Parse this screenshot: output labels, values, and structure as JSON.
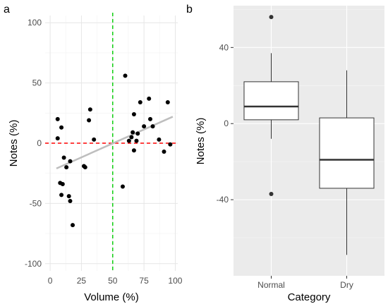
{
  "chart_data": [
    {
      "panel_label": "a",
      "type": "scatter",
      "xlabel": "Volume (%)",
      "ylabel": "Notes (%)",
      "xlim": [
        -4,
        102
      ],
      "ylim": [
        -106,
        106
      ],
      "xticks": [
        0,
        25,
        50,
        75,
        100
      ],
      "yticks": [
        -100,
        -50,
        0,
        50,
        100
      ],
      "grid": true,
      "background": "white",
      "points": [
        [
          6,
          4
        ],
        [
          6,
          20
        ],
        [
          8,
          -33
        ],
        [
          9,
          13
        ],
        [
          9,
          -43
        ],
        [
          10,
          -34
        ],
        [
          11,
          -12
        ],
        [
          13,
          -20
        ],
        [
          15,
          -44
        ],
        [
          16,
          -15
        ],
        [
          16,
          -48
        ],
        [
          18,
          -68
        ],
        [
          27,
          -19
        ],
        [
          28,
          -20
        ],
        [
          31,
          19
        ],
        [
          32,
          28
        ],
        [
          35,
          3
        ],
        [
          58,
          -36
        ],
        [
          60,
          56
        ],
        [
          63,
          2
        ],
        [
          65,
          5
        ],
        [
          66,
          9
        ],
        [
          67,
          -6
        ],
        [
          67,
          24
        ],
        [
          69,
          2
        ],
        [
          70,
          8
        ],
        [
          72,
          34
        ],
        [
          75,
          14
        ],
        [
          79,
          37
        ],
        [
          80,
          20
        ],
        [
          82,
          14
        ],
        [
          87,
          3
        ],
        [
          91,
          -7
        ],
        [
          94,
          34
        ],
        [
          96,
          -1
        ]
      ],
      "trend_line": {
        "x": [
          5,
          98
        ],
        "y": [
          -21,
          22
        ],
        "color": "#bebebe"
      },
      "reference_lines": [
        {
          "orientation": "horizontal",
          "value": 0,
          "color": "#ff0000",
          "style": "dashed"
        },
        {
          "orientation": "vertical",
          "value": 50,
          "color": "#00cc00",
          "style": "dashed"
        }
      ],
      "point_color": "#000000"
    },
    {
      "panel_label": "b",
      "type": "box",
      "xlabel": "Category",
      "ylabel": "Notes (%)",
      "categories": [
        "Normal",
        "Dry"
      ],
      "ylim": [
        -80,
        62
      ],
      "yticks": [
        -40,
        0,
        40
      ],
      "grid": true,
      "background": "#ebebeb",
      "boxes": [
        {
          "category": "Normal",
          "whisker_low": -8,
          "q1": 2,
          "median": 9,
          "q3": 22,
          "whisker_high": 37,
          "outliers": [
            56,
            -37
          ]
        },
        {
          "category": "Dry",
          "whisker_low": -69,
          "q1": -34,
          "median": -19,
          "q3": 3,
          "whisker_high": 28,
          "outliers": []
        }
      ]
    }
  ]
}
